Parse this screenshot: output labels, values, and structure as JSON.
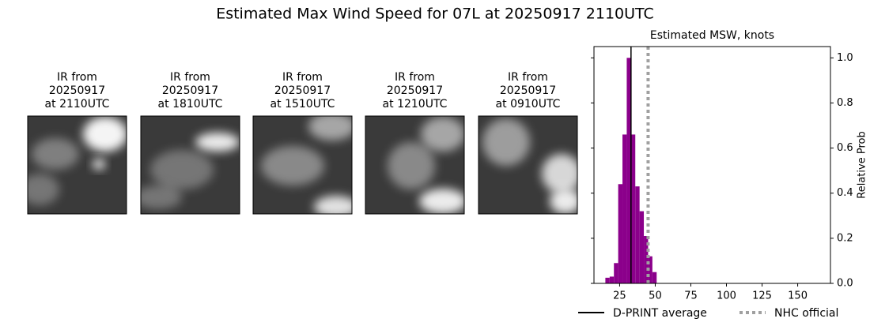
{
  "title": "Estimated Max Wind Speed for 07L at 20250917 2110UTC",
  "panels": [
    {
      "lines": [
        "IR from",
        "20250917",
        "at 2110UTC"
      ]
    },
    {
      "lines": [
        "IR from",
        "20250917",
        "at 1810UTC"
      ]
    },
    {
      "lines": [
        "IR from",
        "20250917",
        "at 1510UTC"
      ]
    },
    {
      "lines": [
        "IR from",
        "20250917",
        "at 1210UTC"
      ]
    },
    {
      "lines": [
        "IR from",
        "20250917",
        "at 0910UTC"
      ]
    }
  ],
  "chart_data": {
    "type": "histogram",
    "title": "Estimated MSW, knots",
    "y_label": "Relative Prob",
    "bins": [
      15,
      18,
      21,
      24,
      27,
      30,
      33,
      36,
      39,
      42,
      45,
      48,
      51
    ],
    "values": [
      0.025,
      0.03,
      0.09,
      0.44,
      0.66,
      1.0,
      0.66,
      0.43,
      0.32,
      0.21,
      0.12,
      0.05
    ],
    "color": "#8b008b",
    "xlim": [
      7,
      173
    ],
    "xticks": [
      25,
      50,
      75,
      100,
      125,
      150
    ],
    "ylim": [
      0,
      1.05
    ],
    "yticks": [
      {
        "value": 0,
        "label": "0.0"
      },
      0.2,
      0.4,
      0.6,
      0.8,
      {
        "value": 1,
        "label": "1.0"
      }
    ],
    "reference_lines": [
      {
        "name": "D-PRINT average",
        "value": 33,
        "color": "#000000",
        "style": "solid"
      },
      {
        "name": "NHC official",
        "value": 45,
        "color": "#a0a0a0",
        "style": "dotted"
      }
    ]
  }
}
